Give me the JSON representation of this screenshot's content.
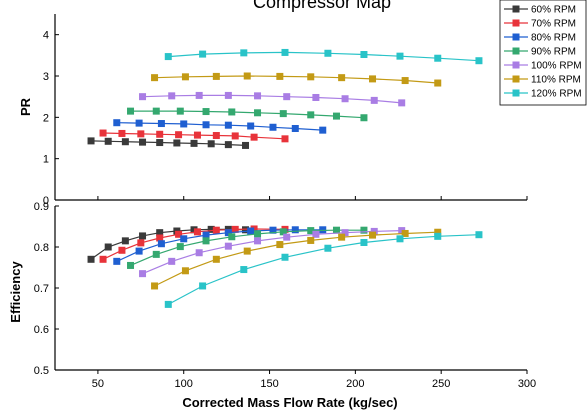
{
  "page_title": "Compressor Map",
  "chart_data": [
    {
      "type": "line",
      "panel": "top",
      "ylabel": "PR",
      "xlim": [
        25,
        300
      ],
      "ylim": [
        0,
        4.5
      ],
      "yticks": [
        "0",
        "1",
        "2",
        "3",
        "4"
      ],
      "legend_position": "top-right",
      "series": [
        {
          "name": "60% RPM",
          "color": "#3a3a3a",
          "x": [
            46,
            56,
            66,
            76,
            86,
            96,
            106,
            116,
            126,
            136
          ],
          "y": [
            1.43,
            1.42,
            1.41,
            1.4,
            1.39,
            1.38,
            1.37,
            1.36,
            1.34,
            1.32
          ]
        },
        {
          "name": "70% RPM",
          "color": "#e8333a",
          "x": [
            53,
            64,
            75,
            86,
            97,
            108,
            119,
            130,
            141,
            159
          ],
          "y": [
            1.62,
            1.61,
            1.6,
            1.59,
            1.58,
            1.57,
            1.56,
            1.55,
            1.52,
            1.48
          ]
        },
        {
          "name": "80% RPM",
          "color": "#1f5fd1",
          "x": [
            61,
            74,
            87,
            100,
            113,
            126,
            139,
            152,
            165,
            181
          ],
          "y": [
            1.87,
            1.86,
            1.85,
            1.84,
            1.82,
            1.81,
            1.79,
            1.76,
            1.73,
            1.69
          ]
        },
        {
          "name": "90% RPM",
          "color": "#34a86f",
          "x": [
            69,
            84,
            98,
            113,
            128,
            143,
            158,
            174,
            189,
            205
          ],
          "y": [
            2.15,
            2.15,
            2.15,
            2.14,
            2.13,
            2.11,
            2.09,
            2.06,
            2.03,
            1.99
          ]
        },
        {
          "name": "100% RPM",
          "color": "#a97de4",
          "x": [
            76,
            93,
            109,
            126,
            143,
            160,
            177,
            194,
            211,
            227
          ],
          "y": [
            2.5,
            2.52,
            2.53,
            2.53,
            2.52,
            2.5,
            2.48,
            2.45,
            2.41,
            2.35
          ]
        },
        {
          "name": "110% RPM",
          "color": "#c39a15",
          "x": [
            83,
            101,
            119,
            137,
            156,
            174,
            192,
            210,
            229,
            248
          ],
          "y": [
            2.96,
            2.98,
            2.99,
            3.0,
            2.99,
            2.98,
            2.96,
            2.93,
            2.89,
            2.83
          ]
        },
        {
          "name": "120% RPM",
          "color": "#29c3c8",
          "x": [
            91,
            111,
            135,
            159,
            184,
            205,
            226,
            248,
            272
          ],
          "y": [
            3.47,
            3.53,
            3.56,
            3.57,
            3.55,
            3.52,
            3.48,
            3.43,
            3.37
          ]
        }
      ]
    },
    {
      "type": "line",
      "panel": "bottom",
      "xlabel": "Corrected Mass Flow Rate (kg/sec)",
      "ylabel": "Efficiency",
      "xlim": [
        25,
        300
      ],
      "ylim": [
        0.5,
        0.9
      ],
      "xticks": [
        "50",
        "100",
        "150",
        "200",
        "250",
        "300"
      ],
      "yticks": [
        "0.5",
        "0.6",
        "0.7",
        "0.8",
        "0.9"
      ],
      "series": [
        {
          "name": "60% RPM",
          "color": "#3a3a3a",
          "x": [
            46,
            56,
            66,
            76,
            86,
            96,
            106,
            116,
            126,
            136
          ],
          "y": [
            0.77,
            0.8,
            0.815,
            0.827,
            0.835,
            0.839,
            0.842,
            0.843,
            0.843,
            0.842
          ]
        },
        {
          "name": "70% RPM",
          "color": "#e8333a",
          "x": [
            53,
            64,
            75,
            86,
            97,
            108,
            119,
            130,
            141,
            159
          ],
          "y": [
            0.77,
            0.792,
            0.81,
            0.822,
            0.831,
            0.837,
            0.841,
            0.843,
            0.844,
            0.843
          ]
        },
        {
          "name": "80% RPM",
          "color": "#1f5fd1",
          "x": [
            61,
            74,
            87,
            100,
            113,
            126,
            139,
            152,
            165,
            181
          ],
          "y": [
            0.765,
            0.79,
            0.808,
            0.82,
            0.829,
            0.835,
            0.839,
            0.841,
            0.842,
            0.842
          ]
        },
        {
          "name": "90% RPM",
          "color": "#34a86f",
          "x": [
            69,
            84,
            98,
            113,
            128,
            143,
            158,
            174,
            189,
            205
          ],
          "y": [
            0.755,
            0.782,
            0.801,
            0.815,
            0.825,
            0.832,
            0.837,
            0.84,
            0.841,
            0.841
          ]
        },
        {
          "name": "100% RPM",
          "color": "#a97de4",
          "x": [
            76,
            93,
            109,
            126,
            143,
            160,
            177,
            194,
            211,
            227
          ],
          "y": [
            0.735,
            0.765,
            0.786,
            0.802,
            0.815,
            0.824,
            0.831,
            0.835,
            0.838,
            0.84
          ]
        },
        {
          "name": "110% RPM",
          "color": "#c39a15",
          "x": [
            83,
            101,
            119,
            137,
            156,
            174,
            192,
            210,
            229,
            248
          ],
          "y": [
            0.705,
            0.742,
            0.77,
            0.79,
            0.806,
            0.816,
            0.824,
            0.829,
            0.833,
            0.836
          ]
        },
        {
          "name": "120% RPM",
          "color": "#29c3c8",
          "x": [
            91,
            111,
            135,
            159,
            184,
            205,
            226,
            248,
            272
          ],
          "y": [
            0.66,
            0.705,
            0.745,
            0.775,
            0.797,
            0.811,
            0.82,
            0.826,
            0.83
          ]
        }
      ]
    }
  ]
}
